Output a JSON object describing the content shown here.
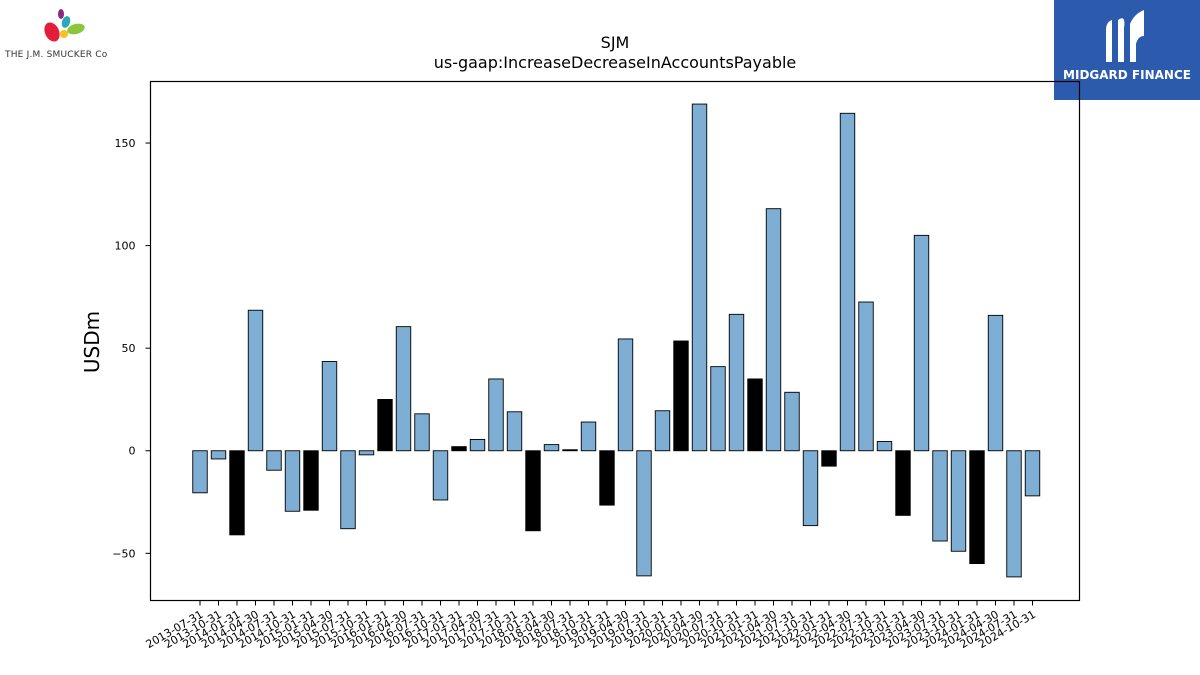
{
  "brand": {
    "left_logo_text": "THE J.M. SMUCKER Co",
    "right_logo_text": "MIDGARD FINANCE",
    "right_logo_bg": "#2c5aad"
  },
  "chart_data": {
    "type": "bar",
    "title": "SJM",
    "subtitle": "us-gaap:IncreaseDecreaseInAccountsPayable",
    "xlabel": "",
    "ylabel": "USDm",
    "ylim": [
      -73,
      180
    ],
    "yticks": [
      -50,
      0,
      50,
      100,
      150
    ],
    "grid": false,
    "colors": {
      "quarter": "#7eaed3",
      "annual": "#000000",
      "edge": "#000000"
    },
    "categories": [
      "2013-07-31",
      "2013-10-31",
      "2014-01-31",
      "2014-04-30",
      "2014-07-31",
      "2014-10-31",
      "2015-01-31",
      "2015-04-30",
      "2015-07-31",
      "2015-10-31",
      "2016-01-31",
      "2016-04-30",
      "2016-07-31",
      "2016-10-31",
      "2017-01-31",
      "2017-04-30",
      "2017-07-31",
      "2017-10-31",
      "2018-01-31",
      "2018-04-30",
      "2018-07-31",
      "2018-10-31",
      "2019-01-31",
      "2019-04-30",
      "2019-07-31",
      "2019-10-31",
      "2020-01-31",
      "2020-04-30",
      "2020-07-31",
      "2020-10-31",
      "2021-01-31",
      "2021-04-30",
      "2021-07-31",
      "2021-10-31",
      "2022-01-31",
      "2022-04-30",
      "2022-07-31",
      "2022-10-31",
      "2023-01-31",
      "2023-04-30",
      "2023-07-31",
      "2023-10-31",
      "2024-01-31",
      "2024-04-30",
      "2024-07-31",
      "2024-10-31"
    ],
    "values": [
      -20.5,
      -4,
      -41,
      68.5,
      -9.5,
      -29.5,
      -29,
      43.5,
      -38,
      -2,
      25,
      60.5,
      18,
      -24,
      2,
      5.5,
      35,
      19,
      -39,
      3,
      0.5,
      14,
      -26.5,
      54.5,
      -61,
      19.5,
      53.5,
      169,
      41,
      66.5,
      35,
      118,
      28.5,
      -36.5,
      -7.5,
      164.5,
      72.5,
      4.5,
      -31.5,
      105,
      -44,
      -49,
      -55,
      66,
      -61.5,
      -22
    ],
    "highlight": [
      false,
      false,
      true,
      false,
      false,
      false,
      true,
      false,
      false,
      false,
      true,
      false,
      false,
      false,
      true,
      false,
      false,
      false,
      true,
      false,
      true,
      false,
      true,
      false,
      false,
      false,
      true,
      false,
      false,
      false,
      true,
      false,
      false,
      false,
      true,
      false,
      false,
      false,
      true,
      false,
      false,
      false,
      true,
      false,
      false,
      false
    ]
  }
}
